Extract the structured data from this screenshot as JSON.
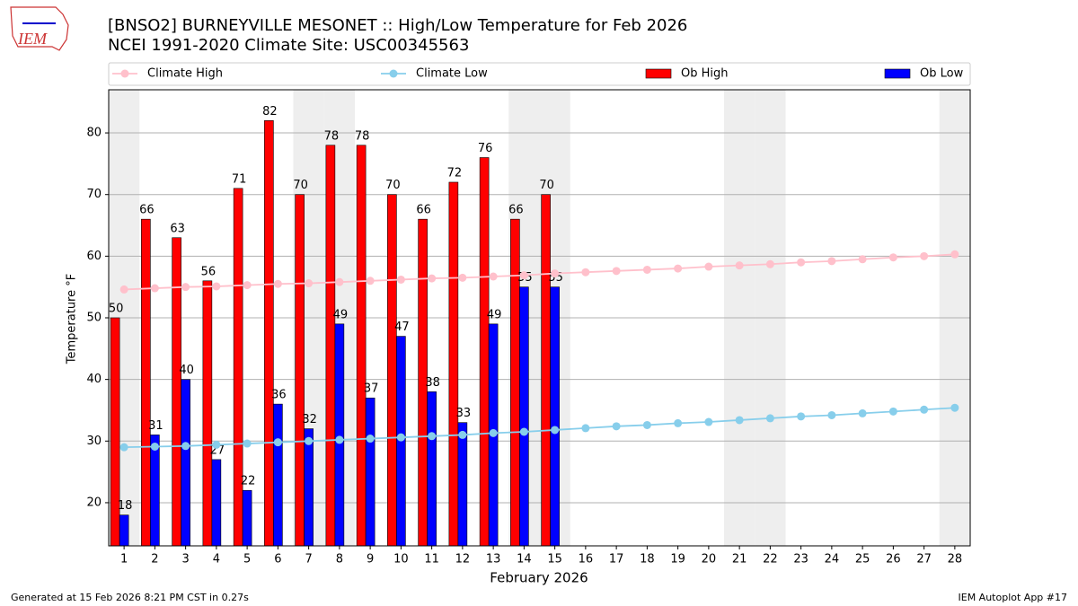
{
  "logo": "IEM",
  "footer": {
    "left": "Generated at 15 Feb 2026 8:21 PM CST in 0.27s",
    "right": "IEM Autoplot App #17"
  },
  "chart_data": {
    "type": "bar",
    "title": "[BNSO2] BURNEYVILLE MESONET :: High/Low Temperature for Feb 2026",
    "subtitle": "NCEI 1991-2020 Climate Site: USC00345563",
    "x_label": "February 2026",
    "y_label": "Temperature °F",
    "categories": [
      "1",
      "2",
      "3",
      "4",
      "5",
      "6",
      "7",
      "8",
      "9",
      "10",
      "11",
      "12",
      "13",
      "14",
      "15",
      "16",
      "17",
      "18",
      "19",
      "20",
      "21",
      "22",
      "23",
      "24",
      "25",
      "26",
      "27",
      "28"
    ],
    "ylim": [
      13,
      87
    ],
    "yticks": [
      20,
      30,
      40,
      50,
      60,
      70,
      80
    ],
    "grid": true,
    "legend": "top",
    "series": [
      {
        "name": "Climate High",
        "type": "line",
        "color": "#ffc0cb",
        "values": [
          54.6,
          54.8,
          55.0,
          55.1,
          55.3,
          55.5,
          55.6,
          55.8,
          56.0,
          56.2,
          56.4,
          56.5,
          56.7,
          56.9,
          57.2,
          57.4,
          57.6,
          57.8,
          58.0,
          58.3,
          58.5,
          58.7,
          59.0,
          59.2,
          59.5,
          59.8,
          60.0,
          60.3
        ]
      },
      {
        "name": "Climate Low",
        "type": "line",
        "color": "#87ceeb",
        "values": [
          29.0,
          29.1,
          29.2,
          29.4,
          29.6,
          29.8,
          30.0,
          30.2,
          30.4,
          30.6,
          30.8,
          31.0,
          31.3,
          31.5,
          31.8,
          32.1,
          32.4,
          32.6,
          32.9,
          33.1,
          33.4,
          33.7,
          34.0,
          34.2,
          34.5,
          34.8,
          35.1,
          35.4
        ]
      },
      {
        "name": "Ob High",
        "type": "bar",
        "color": "#ff0000",
        "values": [
          50,
          66,
          63,
          56,
          71,
          82,
          70,
          78,
          78,
          70,
          66,
          72,
          76,
          66,
          70,
          null,
          null,
          null,
          null,
          null,
          null,
          null,
          null,
          null,
          null,
          null,
          null,
          null
        ]
      },
      {
        "name": "Ob Low",
        "type": "bar",
        "color": "#0000ff",
        "values": [
          18,
          31,
          40,
          27,
          22,
          36,
          32,
          49,
          37,
          47,
          38,
          33,
          49,
          55,
          55,
          null,
          null,
          null,
          null,
          null,
          null,
          null,
          null,
          null,
          null,
          null,
          null,
          null
        ]
      }
    ]
  }
}
